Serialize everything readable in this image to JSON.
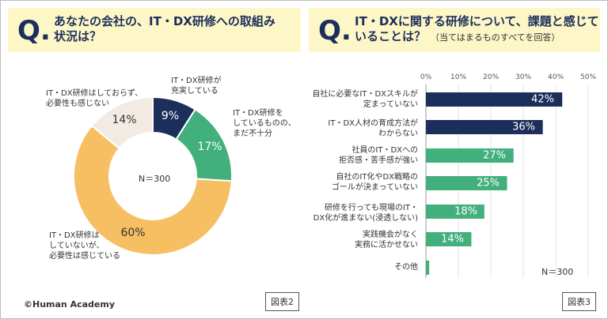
{
  "left": {
    "q": "Q.",
    "question": [
      "あなたの会社の、IT・DX研修への取組み",
      "状況は？"
    ],
    "n": "N＝300",
    "tag": "図表2"
  },
  "right": {
    "q": "Q.",
    "question": [
      "IT・DXに関する研修について、課題と感じて",
      "いることは？"
    ],
    "note": "（当てはまるものすべてを回答）",
    "n": "N＝300",
    "tag": "図表3"
  },
  "copyright": "©Human Academy",
  "chart_data": [
    {
      "type": "pie",
      "labels": [
        [
          "IT・DX研修が",
          "充実している"
        ],
        [
          "IT・DX研修を",
          "しているものの、",
          "まだ不十分"
        ],
        [
          "IT・DX研修は",
          "していないが、",
          "必要性は感じている"
        ],
        [
          "IT・DX研修はしておらず、",
          "必要性も感じない"
        ]
      ],
      "values": [
        9,
        17,
        60,
        14
      ],
      "value_labels": [
        "9%",
        "17%",
        "60%",
        "14%"
      ],
      "colors": [
        "#1c2f5a",
        "#41b07c",
        "#f5bf62",
        "#f3ebe3"
      ],
      "donut": true
    },
    {
      "type": "bar",
      "orientation": "horizontal",
      "categories": [
        [
          "自社に必要なIT・DXスキルが",
          "定まっていない"
        ],
        [
          "IT・DX人材の育成方法が",
          "わからない"
        ],
        [
          "社員のIT・DXへの",
          "拒否感・苦手感が強い"
        ],
        [
          "自社のIT化やDX戦略の",
          "ゴールが決まっていない"
        ],
        [
          "研修を行っても現場のIT・",
          "DX化が進まない(浸透しない)"
        ],
        [
          "実践機会がなく",
          "実務に活かせない"
        ],
        [
          "その他"
        ]
      ],
      "values": [
        42,
        36,
        27,
        25,
        18,
        14,
        1
      ],
      "value_labels": [
        "42%",
        "36%",
        "27%",
        "25%",
        "18%",
        "14%",
        ""
      ],
      "colors": [
        "#1c2f5a",
        "#1c2f5a",
        "#41b07c",
        "#41b07c",
        "#41b07c",
        "#41b07c",
        "#41b07c"
      ],
      "xlim": [
        0,
        50
      ],
      "xticks": [
        "0%",
        "10%",
        "20%",
        "30%",
        "40%",
        "50%"
      ]
    }
  ]
}
